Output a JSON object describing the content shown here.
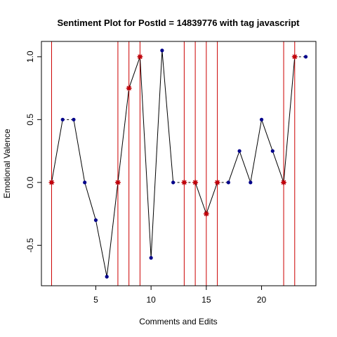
{
  "chart_data": {
    "type": "line",
    "title": "Sentiment Plot for PostId =  14839776  with tag  javascript",
    "xlabel": "Comments and Edits",
    "ylabel": "Emotional Valence",
    "xlim": [
      0.08,
      24.92
    ],
    "ylim": [
      -0.822,
      1.122
    ],
    "x_ticks": [
      5,
      10,
      15,
      20
    ],
    "x_tick_labels": [
      "5",
      "10",
      "15",
      "20"
    ],
    "y_ticks": [
      -0.5,
      0.0,
      0.5,
      1.0
    ],
    "y_tick_labels": [
      "-0.5",
      "0.0",
      "0.5",
      "1.0"
    ],
    "grid": false,
    "series": [
      {
        "x": [
          1,
          2,
          3,
          4,
          5,
          6,
          7,
          8,
          9,
          10,
          11,
          12,
          13,
          14,
          15,
          16,
          17,
          18,
          19,
          20,
          21,
          22,
          23,
          24
        ],
        "values": [
          0.0,
          0.5,
          0.5,
          0.0,
          -0.3,
          -0.75,
          0.0,
          0.75,
          1.0,
          -0.6,
          1.05,
          0.0,
          0.0,
          0.0,
          -0.25,
          0.0,
          0.0,
          0.25,
          0.0,
          0.5,
          0.25,
          0.0,
          1.0,
          1.0
        ],
        "line_type": [
          "solid",
          "dashed",
          "solid",
          "solid",
          "solid",
          "solid",
          "solid",
          "solid",
          "solid",
          "solid",
          "solid",
          "dashed",
          "dashed",
          "solid",
          "solid",
          "dashed",
          "solid",
          "solid",
          "solid",
          "solid",
          "solid",
          "solid",
          "dashed"
        ]
      }
    ],
    "edit_markers": [
      1,
      7,
      8,
      9,
      13,
      14,
      15,
      16,
      22,
      23
    ],
    "colors": {
      "line": "#000000",
      "point": "#00008B",
      "edit_line": "#CC0000",
      "edit_marker": "#CC0000"
    }
  }
}
